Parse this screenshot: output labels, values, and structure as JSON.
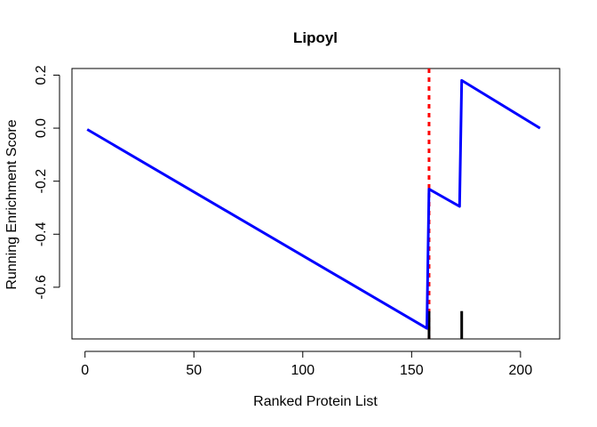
{
  "chart_data": {
    "type": "line",
    "title": "Lipoyl",
    "xlabel": "Ranked Protein List",
    "ylabel": "Running Enrichment Score",
    "xlim": [
      -6,
      218
    ],
    "ylim": [
      -0.795,
      0.225
    ],
    "xticks": [
      0,
      50,
      100,
      150,
      200
    ],
    "yticks": [
      -0.6,
      -0.4,
      -0.2,
      0.0,
      0.2
    ],
    "ytick_labels": [
      "-0.6",
      "-0.4",
      "-0.2",
      "0.0",
      "0.2"
    ],
    "grid": false,
    "series": [
      {
        "color": "#0000ff",
        "x": [
          1,
          157,
          158,
          172,
          173,
          209
        ],
        "y": [
          -0.005,
          -0.755,
          -0.23,
          -0.295,
          0.18,
          0.0
        ]
      }
    ],
    "vline": {
      "x": 158,
      "color": "#ff0000",
      "style": "dashed"
    },
    "hits": {
      "x": [
        158,
        173
      ],
      "y_from": -0.795,
      "y_to": -0.69,
      "color": "#000000"
    }
  }
}
